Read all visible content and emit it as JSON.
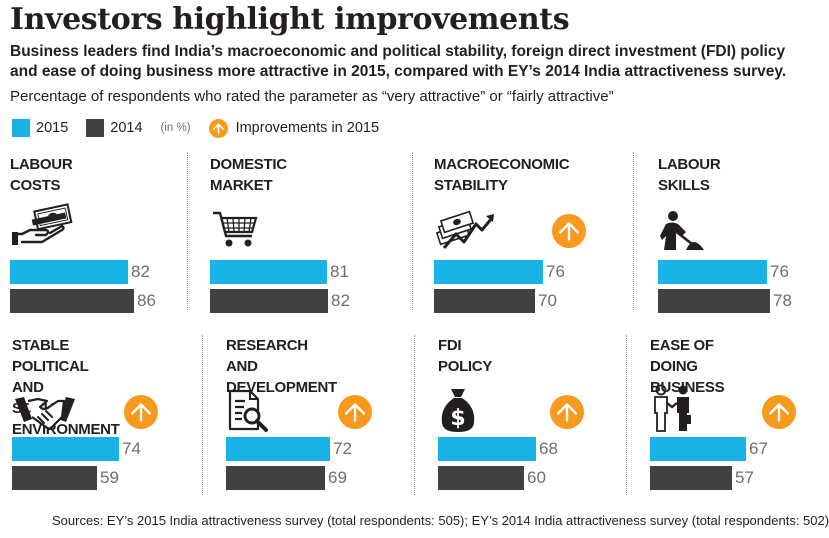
{
  "title": "Investors highlight improvements",
  "subtitle": "Business leaders find India’s macroeconomic and political stability, foreign direct investment (FDI) policy and ease of doing business more attractive in 2015, compared with EY’s 2014 India attractiveness survey.",
  "note": "Percentage of respondents who rated the parameter as “very attractive” or “fairly attractive”",
  "legend": {
    "label_2015": "2015",
    "label_2014": "2014",
    "unit": "(in %)",
    "improvement": "Improvements in 2015"
  },
  "colors": {
    "y2015": "#1ab1e6",
    "y2014": "#414042",
    "improvement": "#f79a1e",
    "value_text": "#6d6e71"
  },
  "source": "Sources: EY’s 2015 India attractiveness survey (total respondents: 505); EY’s 2014 India attractiveness survey (total respondents: 502)",
  "chart_data": {
    "type": "bar",
    "orientation": "horizontal",
    "series": [
      {
        "name": "2015",
        "values": [
          82,
          81,
          76,
          76,
          74,
          72,
          68,
          67
        ]
      },
      {
        "name": "2014",
        "values": [
          86,
          82,
          70,
          78,
          59,
          69,
          60,
          57
        ]
      }
    ],
    "categories": [
      "LABOUR COSTS",
      "DOMESTIC MARKET",
      "MACROECONOMIC STABILITY",
      "LABOUR SKILLS",
      "STABLE POLITICAL AND SOCIAL ENVIRONMENT",
      "RESEARCH AND DEVELOPMENT",
      "FDI POLICY",
      "EASE OF DOING BUSINESS"
    ],
    "panels": [
      {
        "title": "LABOUR COSTS",
        "icon": "money-hand-icon",
        "v2015": 82,
        "v2014": 86,
        "improved": false
      },
      {
        "title": "DOMESTIC MARKET",
        "icon": "shopping-cart-icon",
        "v2015": 81,
        "v2014": 82,
        "improved": false
      },
      {
        "title": "MACROECONOMIC\nSTABILITY",
        "icon": "money-stack-chart-icon",
        "v2015": 76,
        "v2014": 70,
        "improved": true
      },
      {
        "title": "LABOUR SKILLS",
        "icon": "worker-shovel-icon",
        "v2015": 76,
        "v2014": 78,
        "improved": false
      },
      {
        "title": "STABLE POLITICAL AND\nSOCIAL ENVIRONMENT",
        "icon": "handshake-icon",
        "v2015": 74,
        "v2014": 59,
        "improved": true
      },
      {
        "title": "RESEARCH AND\nDEVELOPMENT",
        "icon": "document-magnifier-icon",
        "v2015": 72,
        "v2014": 69,
        "improved": true
      },
      {
        "title": "FDI POLICY",
        "icon": "money-bag-icon",
        "v2015": 68,
        "v2014": 60,
        "improved": true
      },
      {
        "title": "EASE OF DOING\nBUSINESS",
        "icon": "business-handshake-icon",
        "v2015": 67,
        "v2014": 57,
        "improved": true
      }
    ],
    "grid": false,
    "legend_position": "top-left"
  }
}
